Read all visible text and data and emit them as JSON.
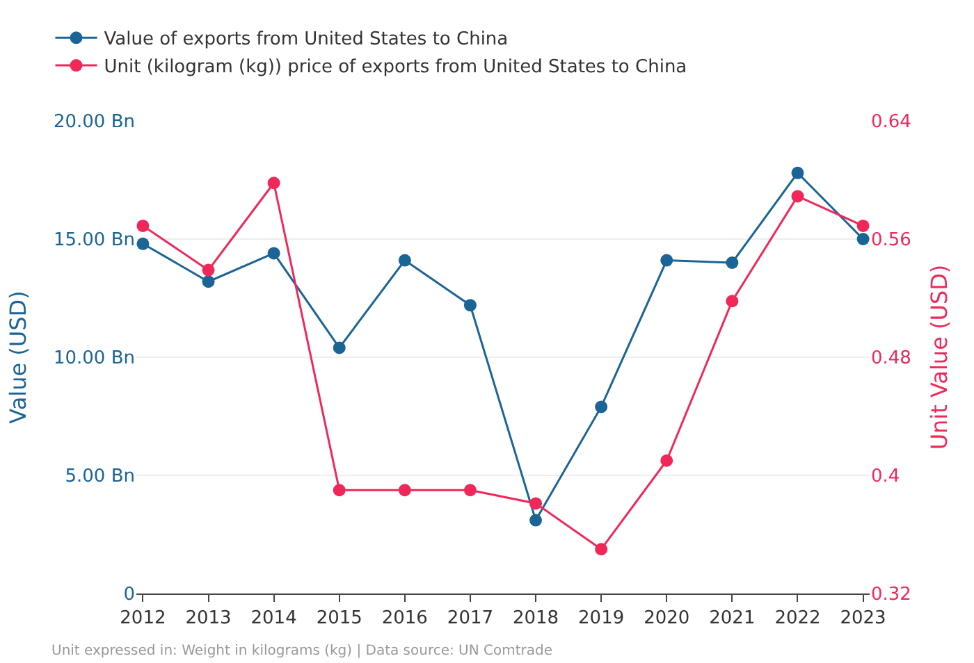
{
  "chart_data": {
    "type": "line",
    "categories": [
      "2012",
      "2013",
      "2014",
      "2015",
      "2016",
      "2017",
      "2018",
      "2019",
      "2020",
      "2021",
      "2022",
      "2023"
    ],
    "series": [
      {
        "name": "Value of exports from United States to China",
        "color": "#1a6496",
        "values": [
          14.8,
          13.2,
          14.4,
          10.4,
          14.1,
          12.2,
          3.1,
          7.9,
          14.1,
          14.0,
          17.8,
          15.0
        ]
      },
      {
        "name": "Unit (kilogram (kg)) price of exports from United States to China",
        "color": "#f0285a",
        "axis": "y2",
        "values": [
          0.569,
          0.539,
          0.598,
          0.39,
          0.39,
          0.39,
          0.381,
          0.35,
          0.41,
          0.518,
          0.589,
          0.569
        ]
      }
    ],
    "ylabel": "Value (USD)",
    "y2label": "Unit Value (USD)",
    "ylim": [
      0,
      20
    ],
    "yticks": [
      {
        "value": 0,
        "label": "0"
      },
      {
        "value": 5,
        "label": "5.00 Bn"
      },
      {
        "value": 10,
        "label": "10.00 Bn"
      },
      {
        "value": 15,
        "label": "15.00 Bn"
      },
      {
        "value": 20,
        "label": "20.00 Bn"
      }
    ],
    "y2lim": [
      0.32,
      0.64
    ],
    "y2ticks": [
      0.32,
      {
        "value": 0.4,
        "label": "0.4"
      },
      0.48,
      0.56,
      0.64
    ],
    "annotations": [
      "Unit expressed in: Weight in kilograms (kg) | Data source: UN Comtrade"
    ],
    "grid": "y",
    "legend": "top left",
    "marker": "circle",
    "line_style": "solid"
  }
}
